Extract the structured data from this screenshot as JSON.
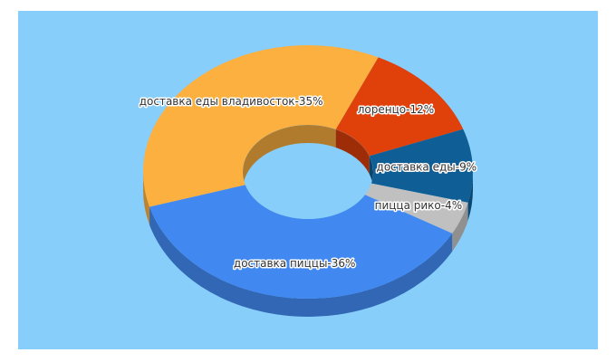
{
  "chart_data": {
    "type": "pie",
    "donut": true,
    "value_labels": [
      "доставка еды владивосток-35%",
      "лоренцо-12%",
      "доставка еды-9%",
      "пицца рико-4%",
      "доставка пиццы-36%"
    ],
    "values": [
      35,
      12,
      9,
      4,
      36
    ],
    "colors": [
      "#fbb040",
      "#e0400a",
      "#0f5f96",
      "#c0c0c0",
      "#4189f0"
    ]
  }
}
